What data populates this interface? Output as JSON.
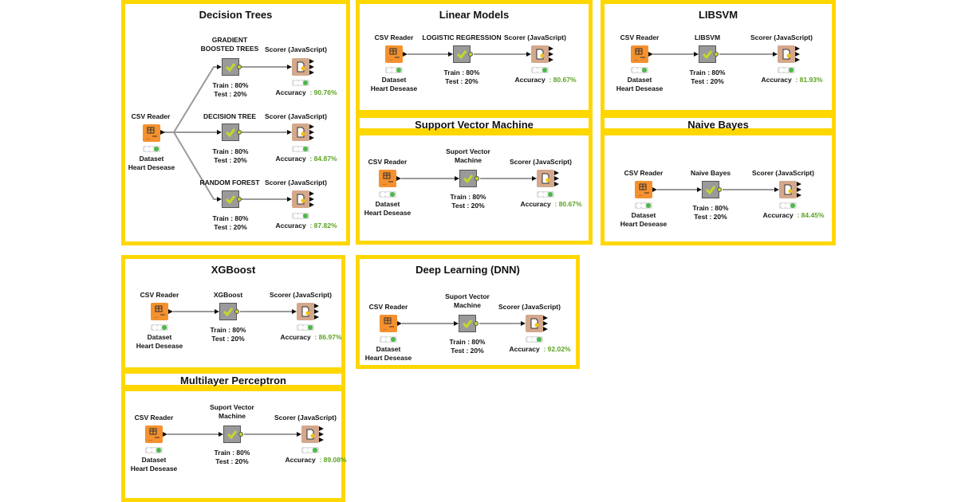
{
  "colors": {
    "panel_border": "#FFD700",
    "csv_node": "#F5912E",
    "learner_node": "#9A9A9A",
    "scorer_node": "#D4A88C",
    "accuracy": "#5BA321",
    "check": "#C5D828"
  },
  "common": {
    "csv_label": "CSV Reader",
    "dataset_line1": "Dataset",
    "dataset_line2": "Heart Desease",
    "scorer_label": "Scorer (JavaScript)",
    "train": "Train : 80%",
    "test": "Test : 20%",
    "accuracy_label": "Accuracy"
  },
  "panels": {
    "decision_trees": {
      "title": "Decision Trees",
      "branches": [
        {
          "learner_line1": "GRADIENT",
          "learner_line2": "BOOSTED TREES",
          "accuracy": ": 90.76%"
        },
        {
          "learner_line1": "DECISION TREE",
          "accuracy": ": 84.87%"
        },
        {
          "learner_line1": "RANDOM FOREST",
          "accuracy": ": 87.82%"
        }
      ]
    },
    "linear_models": {
      "title": "Linear Models",
      "learner_line1": "LOGISTIC REGRESSION",
      "accuracy": ": 80.67%"
    },
    "svm": {
      "title": "Support Vector Machine",
      "learner_line1": "Suport Vector",
      "learner_line2": "Machine",
      "accuracy": ": 80.67%"
    },
    "libsvm": {
      "title": "LIBSVM",
      "learner_line1": "LIBSVM",
      "accuracy": ": 81.93%"
    },
    "naive_bayes": {
      "title": "Naive Bayes",
      "learner_line1": "Naive Bayes",
      "accuracy": ": 84.45%"
    },
    "xgboost": {
      "title": "XGBoost",
      "learner_line1": "XGBoost",
      "accuracy": ": 86.97%"
    },
    "mlp": {
      "title": "Multilayer Perceptron",
      "learner_line1": "Suport Vector",
      "learner_line2": "Machine",
      "accuracy": ": 89.08%"
    },
    "dnn": {
      "title": "Deep Learning (DNN)",
      "learner_line1": "Suport Vector",
      "learner_line2": "Machine",
      "accuracy": ": 92.02%"
    }
  }
}
